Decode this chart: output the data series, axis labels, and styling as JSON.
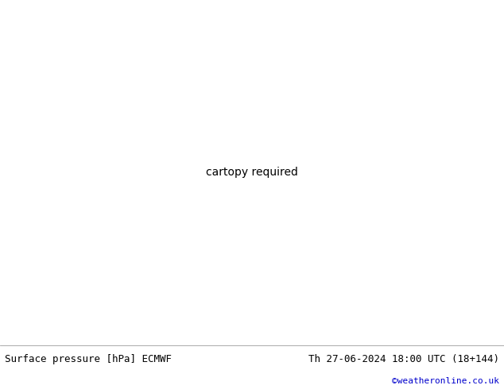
{
  "title_left": "Surface pressure [hPa] ECMWF",
  "title_right": "Th 27-06-2024 18:00 UTC (18+144)",
  "copyright": "©weatheronline.co.uk",
  "bg_color": "#e0e0e0",
  "land_color": "#c8e6a0",
  "ocean_color": "#dcdcdc",
  "border_color": "#aaaaaa",
  "contour_blue": "#0000ee",
  "contour_black": "#000000",
  "contour_red": "#cc0000",
  "footer_bg": "#ffffff",
  "font_mono": "DejaVu Sans Mono",
  "font_size_footer": 9,
  "font_size_label": 7,
  "lon_min": 85,
  "lon_max": 175,
  "lat_min": -15,
  "lat_max": 55,
  "figw": 6.34,
  "figh": 4.9,
  "dpi": 100
}
